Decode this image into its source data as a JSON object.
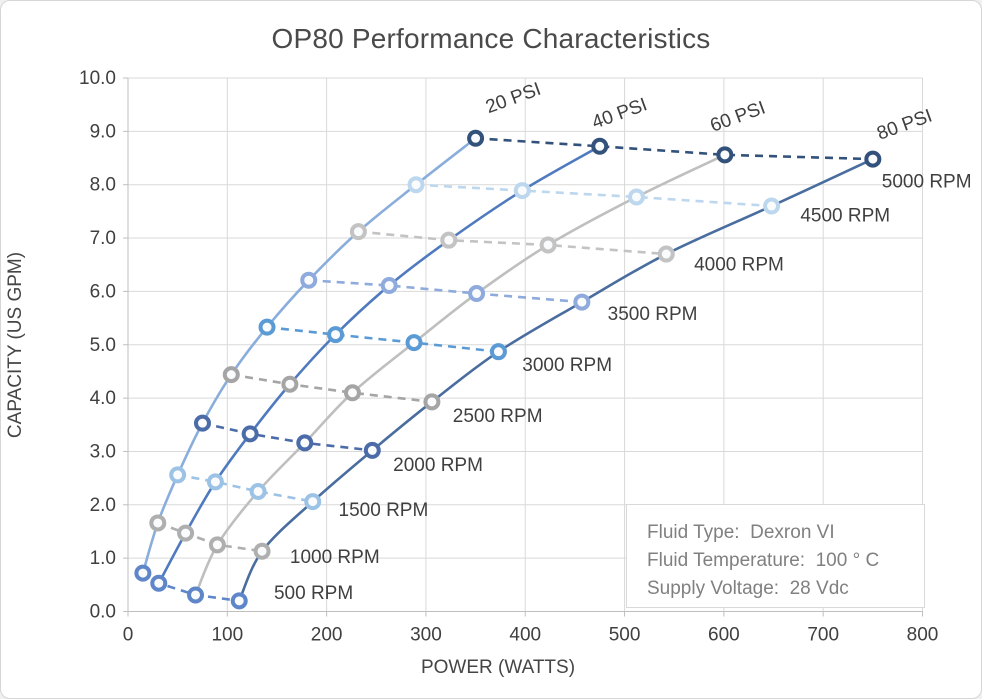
{
  "chart_data": {
    "type": "line",
    "title": "OP80 Performance Characteristics",
    "xlabel": "POWER (WATTS)",
    "ylabel": "CAPACITY (US GPM)",
    "xlim": [
      0,
      800
    ],
    "ylim": [
      0,
      10
    ],
    "x_ticks": [
      0,
      100,
      200,
      300,
      400,
      500,
      600,
      700,
      800
    ],
    "y_ticks": [
      0,
      1,
      2,
      3,
      4,
      5,
      6,
      7,
      8,
      9,
      10
    ],
    "grid": true,
    "legend_position": "none",
    "colors": {
      "grid": "#d9d9d9",
      "axis": "#bfbfbf",
      "tick_text": "#404040",
      "annotation_text": "#3f3f3f",
      "marker_fill": "#fafbfd"
    },
    "series": [
      {
        "name": "20 PSI",
        "style": "solid",
        "color": "#8aaedc",
        "label_at": {
          "watts": 390,
          "gpm": 9.52,
          "rotation": -20
        },
        "points": [
          {
            "rpm": 500,
            "watts": 15,
            "gpm": 0.72
          },
          {
            "rpm": 1000,
            "watts": 30,
            "gpm": 1.66
          },
          {
            "rpm": 1500,
            "watts": 50,
            "gpm": 2.56
          },
          {
            "rpm": 2000,
            "watts": 75,
            "gpm": 3.53
          },
          {
            "rpm": 2500,
            "watts": 104,
            "gpm": 4.44
          },
          {
            "rpm": 3000,
            "watts": 140,
            "gpm": 5.33
          },
          {
            "rpm": 3500,
            "watts": 182,
            "gpm": 6.21
          },
          {
            "rpm": 4000,
            "watts": 232,
            "gpm": 7.12
          },
          {
            "rpm": 4500,
            "watts": 290,
            "gpm": 8.0
          },
          {
            "rpm": 5000,
            "watts": 350,
            "gpm": 8.87
          }
        ]
      },
      {
        "name": "40 PSI",
        "style": "solid",
        "color": "#4f7abf",
        "label_at": {
          "watts": 497,
          "gpm": 9.23,
          "rotation": -20
        },
        "points": [
          {
            "rpm": 500,
            "watts": 31,
            "gpm": 0.53
          },
          {
            "rpm": 1000,
            "watts": 58,
            "gpm": 1.47
          },
          {
            "rpm": 1500,
            "watts": 88,
            "gpm": 2.43
          },
          {
            "rpm": 2000,
            "watts": 123,
            "gpm": 3.33
          },
          {
            "rpm": 2500,
            "watts": 163,
            "gpm": 4.26
          },
          {
            "rpm": 3000,
            "watts": 209,
            "gpm": 5.19
          },
          {
            "rpm": 3500,
            "watts": 263,
            "gpm": 6.11
          },
          {
            "rpm": 4000,
            "watts": 323,
            "gpm": 6.96
          },
          {
            "rpm": 4500,
            "watts": 397,
            "gpm": 7.89
          },
          {
            "rpm": 5000,
            "watts": 475,
            "gpm": 8.72
          }
        ]
      },
      {
        "name": "60 PSI",
        "style": "solid",
        "color": "#bfbfbf",
        "label_at": {
          "watts": 616,
          "gpm": 9.17,
          "rotation": -20
        },
        "points": [
          {
            "rpm": 500,
            "watts": 68,
            "gpm": 0.31
          },
          {
            "rpm": 1000,
            "watts": 90,
            "gpm": 1.25
          },
          {
            "rpm": 1500,
            "watts": 131,
            "gpm": 2.25
          },
          {
            "rpm": 2000,
            "watts": 178,
            "gpm": 3.16
          },
          {
            "rpm": 2500,
            "watts": 226,
            "gpm": 4.1
          },
          {
            "rpm": 3000,
            "watts": 288,
            "gpm": 5.04
          },
          {
            "rpm": 3500,
            "watts": 351,
            "gpm": 5.96
          },
          {
            "rpm": 4000,
            "watts": 423,
            "gpm": 6.87
          },
          {
            "rpm": 4500,
            "watts": 512,
            "gpm": 7.77
          },
          {
            "rpm": 5000,
            "watts": 601,
            "gpm": 8.56
          }
        ]
      },
      {
        "name": "80 PSI",
        "style": "solid",
        "color": "#4a6d9f",
        "label_at": {
          "watts": 784,
          "gpm": 9.02,
          "rotation": -20
        },
        "points": [
          {
            "rpm": 500,
            "watts": 112,
            "gpm": 0.2
          },
          {
            "rpm": 1000,
            "watts": 135,
            "gpm": 1.13
          },
          {
            "rpm": 1500,
            "watts": 186,
            "gpm": 2.06
          },
          {
            "rpm": 2000,
            "watts": 246,
            "gpm": 3.02
          },
          {
            "rpm": 2500,
            "watts": 306,
            "gpm": 3.93
          },
          {
            "rpm": 3000,
            "watts": 373,
            "gpm": 4.87
          },
          {
            "rpm": 3500,
            "watts": 457,
            "gpm": 5.8
          },
          {
            "rpm": 4000,
            "watts": 542,
            "gpm": 6.7
          },
          {
            "rpm": 4500,
            "watts": 648,
            "gpm": 7.6
          },
          {
            "rpm": 5000,
            "watts": 750,
            "gpm": 8.48
          }
        ]
      }
    ],
    "rpm_rows": [
      {
        "rpm": 500,
        "label": "500 RPM",
        "style": "dashed",
        "color": "#5e86c9",
        "label_at": {
          "watts": 147,
          "gpm": 0.35
        }
      },
      {
        "rpm": 1000,
        "label": "1000 RPM",
        "style": "dashed",
        "color": "#afafaf",
        "label_at": {
          "watts": 163,
          "gpm": 1.02
        }
      },
      {
        "rpm": 1500,
        "label": "1500 RPM",
        "style": "dashed",
        "color": "#9cc3e5",
        "label_at": {
          "watts": 212,
          "gpm": 1.9
        }
      },
      {
        "rpm": 2000,
        "label": "2000 RPM",
        "style": "dashed",
        "color": "#4b6ca8",
        "label_at": {
          "watts": 267,
          "gpm": 2.75
        }
      },
      {
        "rpm": 2500,
        "label": "2500 RPM",
        "style": "dashed",
        "color": "#a5a5a5",
        "label_at": {
          "watts": 327,
          "gpm": 3.66
        }
      },
      {
        "rpm": 3000,
        "label": "3000 RPM",
        "style": "dashed",
        "color": "#5b9bd5",
        "label_at": {
          "watts": 397,
          "gpm": 4.62
        }
      },
      {
        "rpm": 3500,
        "label": "3500 RPM",
        "style": "dashed",
        "color": "#8faadc",
        "label_at": {
          "watts": 483,
          "gpm": 5.58
        }
      },
      {
        "rpm": 4000,
        "label": "4000 RPM",
        "style": "dashed",
        "color": "#c3c3c3",
        "label_at": {
          "watts": 570,
          "gpm": 6.5
        }
      },
      {
        "rpm": 4500,
        "label": "4500 RPM",
        "style": "dashed",
        "color": "#bdd7ee",
        "label_at": {
          "watts": 677,
          "gpm": 7.42
        }
      },
      {
        "rpm": 5000,
        "label": "5000 RPM",
        "style": "dashed",
        "color": "#33527b",
        "label_at": {
          "watts": 759,
          "gpm": 8.06
        }
      }
    ],
    "info_box": {
      "lines": [
        "Fluid Type:  Dexron VI",
        "Fluid Temperature:  100 ° C",
        "Supply Voltage:  28 Vdc"
      ]
    }
  }
}
